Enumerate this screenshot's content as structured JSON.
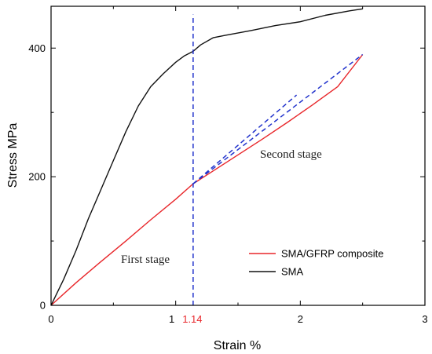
{
  "chart_data": {
    "type": "line",
    "title": "",
    "xlabel": "Strain %",
    "ylabel": "Stress MPa",
    "xlim": [
      0,
      3
    ],
    "ylim": [
      0,
      465
    ],
    "x_ticks": [
      "0",
      "1",
      "2",
      "3"
    ],
    "y_ticks": [
      "0",
      "200",
      "400"
    ],
    "grid": false,
    "legend_position": "bottom-right",
    "series": [
      {
        "name": "SMA/GFRP composite",
        "color": "#e8262a",
        "x": [
          0,
          0.2,
          0.4,
          0.6,
          0.8,
          1.0,
          1.14,
          1.3,
          1.5,
          1.7,
          1.9,
          2.1,
          2.3,
          2.5
        ],
        "y": [
          0,
          35,
          68,
          100,
          133,
          165,
          189,
          209,
          234,
          259,
          285,
          312,
          340,
          390
        ]
      },
      {
        "name": "SMA",
        "color": "#111111",
        "x": [
          0,
          0.1,
          0.2,
          0.3,
          0.4,
          0.5,
          0.6,
          0.7,
          0.8,
          0.9,
          1.0,
          1.07,
          1.14,
          1.2,
          1.3,
          1.4,
          1.6,
          1.8,
          2.0,
          2.2,
          2.4,
          2.5
        ],
        "y": [
          0,
          40,
          85,
          135,
          180,
          225,
          270,
          310,
          340,
          360,
          378,
          388,
          395,
          405,
          416,
          420,
          427,
          435,
          441,
          451,
          458,
          461
        ]
      }
    ],
    "reference_lines": [
      {
        "type": "vertical",
        "x": 1.14,
        "y_range": [
          0,
          452
        ],
        "color": "#2233cc",
        "style": "dashed"
      },
      {
        "type": "segment",
        "x": [
          1.14,
          1.97
        ],
        "y": [
          189,
          327
        ],
        "color": "#2233cc",
        "style": "dashed"
      },
      {
        "type": "segment",
        "x": [
          1.14,
          2.5
        ],
        "y": [
          189,
          390
        ],
        "color": "#2233cc",
        "style": "dashed"
      }
    ],
    "annotations": [
      {
        "text": "First stage",
        "x": 0.53,
        "y": 72
      },
      {
        "text": "Second stage",
        "x": 1.69,
        "y": 253
      },
      {
        "text": "1.14",
        "x": 1.14,
        "color": "#e8262a",
        "position": "x-axis"
      }
    ]
  }
}
